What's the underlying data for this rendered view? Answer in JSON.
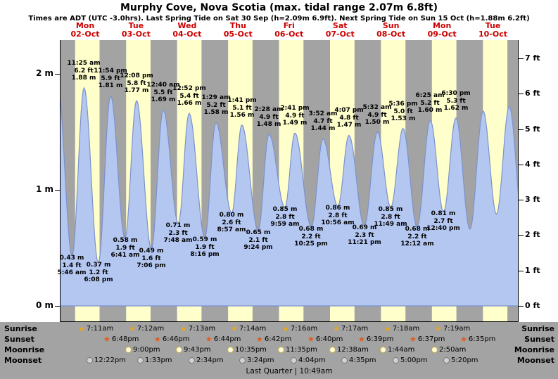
{
  "header": {
    "title": "Murphy Cove, Nova Scotia (max. tidal range 2.07m 6.8ft)",
    "subtitle": "Times are ADT (UTC -3.0hrs). Last Spring Tide on Sat 30 Sep (h=2.09m 6.9ft). Next Spring Tide on Sun 15 Oct (h=1.88m 6.2ft)"
  },
  "colors": {
    "night_band": "#a3a3a3",
    "daylight_band": "#ffffcc",
    "tide_fill": "#b4c7f1",
    "tide_stroke": "#7d92cc",
    "day_label_red": "#cc0000",
    "astro_bg": "#a3a3a3",
    "sunrise_star": "#e8a818",
    "sunset_star": "#e05c20"
  },
  "chart_data": {
    "type": "area",
    "title": "Murphy Cove, Nova Scotia (max. tidal range 2.07m 6.8ft)",
    "grid": false,
    "ylim_m": [
      -0.14,
      2.29
    ],
    "days": [
      {
        "dow": "Mon",
        "date": "02-Oct"
      },
      {
        "dow": "Tue",
        "date": "03-Oct"
      },
      {
        "dow": "Wed",
        "date": "04-Oct"
      },
      {
        "dow": "Thu",
        "date": "05-Oct"
      },
      {
        "dow": "Fri",
        "date": "06-Oct"
      },
      {
        "dow": "Sat",
        "date": "07-Oct"
      },
      {
        "dow": "Sun",
        "date": "08-Oct"
      },
      {
        "dow": "Mon",
        "date": "09-Oct"
      },
      {
        "dow": "Tue",
        "date": "10-Oct"
      }
    ],
    "y_left_ticks": [
      {
        "v": 2,
        "label": "2 m"
      },
      {
        "v": 1,
        "label": "1 m"
      },
      {
        "v": 0,
        "label": "0 m"
      }
    ],
    "y_right_ticks": [
      {
        "v": 7,
        "label": "7 ft"
      },
      {
        "v": 6,
        "label": "6 ft"
      },
      {
        "v": 5,
        "label": "5 ft"
      },
      {
        "v": 4,
        "label": "4 ft"
      },
      {
        "v": 3,
        "label": "3 ft"
      },
      {
        "v": 2,
        "label": "2 ft"
      },
      {
        "v": 1,
        "label": "1 ft"
      },
      {
        "v": 0,
        "label": "0 ft"
      }
    ],
    "daylight": {
      "start_frac": 0.3,
      "end_frac": 0.78
    },
    "tide_events": [
      {
        "t": -1.0,
        "m": 1.9,
        "type": "high",
        "labeled": false
      },
      {
        "t": 5.77,
        "m": 0.43,
        "type": "low",
        "labeled": true,
        "m_label": "0.43 m",
        "ft": "1.4 ft",
        "time": "5:46 am"
      },
      {
        "t": 11.42,
        "m": 1.88,
        "type": "high",
        "labeled": true,
        "time": "11:25 am",
        "ft": "6.2 ft",
        "m_label": "1.88 m"
      },
      {
        "t": 18.13,
        "m": 0.37,
        "type": "low",
        "labeled": true,
        "m_label": "0.37 m",
        "ft": "1.2 ft",
        "time": "6:08 pm"
      },
      {
        "t": 23.9,
        "m": 1.81,
        "type": "high",
        "labeled": true,
        "time": "11:54 pm",
        "ft": "5.9 ft",
        "m_label": "1.81 m"
      },
      {
        "t": 30.68,
        "m": 0.58,
        "type": "low",
        "labeled": true,
        "m_label": "0.58 m",
        "ft": "1.9 ft",
        "time": "6:41 am"
      },
      {
        "t": 36.13,
        "m": 1.77,
        "type": "high",
        "labeled": true,
        "time": "12:08 pm",
        "ft": "5.8 ft",
        "m_label": "1.77 m"
      },
      {
        "t": 43.1,
        "m": 0.49,
        "type": "low",
        "labeled": true,
        "m_label": "0.49 m",
        "ft": "1.6 ft",
        "time": "7:06 pm"
      },
      {
        "t": 48.67,
        "m": 1.69,
        "type": "high",
        "labeled": true,
        "time": "12:40 am",
        "ft": "5.5 ft",
        "m_label": "1.69 m"
      },
      {
        "t": 55.8,
        "m": 0.71,
        "type": "low",
        "labeled": true,
        "m_label": "0.71 m",
        "ft": "2.3 ft",
        "time": "7:48 am"
      },
      {
        "t": 60.87,
        "m": 1.66,
        "type": "high",
        "labeled": true,
        "time": "12:52 pm",
        "ft": "5.4 ft",
        "m_label": "1.66 m"
      },
      {
        "t": 68.27,
        "m": 0.59,
        "type": "low",
        "labeled": true,
        "m_label": "0.59 m",
        "ft": "1.9 ft",
        "time": "8:16 pm"
      },
      {
        "t": 73.48,
        "m": 1.58,
        "type": "high",
        "labeled": true,
        "time": "1:29 am",
        "ft": "5.2 ft",
        "m_label": "1.58 m"
      },
      {
        "t": 80.95,
        "m": 0.8,
        "type": "low",
        "labeled": true,
        "m_label": "0.80 m",
        "ft": "2.6 ft",
        "time": "8:57 am"
      },
      {
        "t": 85.68,
        "m": 1.56,
        "type": "high",
        "labeled": true,
        "time": "1:41 pm",
        "ft": "5.1 ft",
        "m_label": "1.56 m"
      },
      {
        "t": 93.4,
        "m": 0.65,
        "type": "low",
        "labeled": true,
        "m_label": "0.65 m",
        "ft": "2.1 ft",
        "time": "9:24 pm"
      },
      {
        "t": 98.47,
        "m": 1.48,
        "type": "high",
        "labeled": true,
        "time": "2:28 am",
        "ft": "4.9 ft",
        "m_label": "1.48 m"
      },
      {
        "t": 105.98,
        "m": 0.85,
        "type": "low",
        "labeled": true,
        "m_label": "0.85 m",
        "ft": "2.8 ft",
        "time": "9:59 am"
      },
      {
        "t": 110.68,
        "m": 1.49,
        "type": "high",
        "labeled": true,
        "time": "2:41 pm",
        "ft": "4.9 ft",
        "m_label": "1.49 m"
      },
      {
        "t": 118.42,
        "m": 0.68,
        "type": "low",
        "labeled": true,
        "m_label": "0.68 m",
        "ft": "2.2 ft",
        "time": "10:25 pm"
      },
      {
        "t": 123.87,
        "m": 1.44,
        "type": "high",
        "labeled": true,
        "time": "3:52 am",
        "ft": "4.7 ft",
        "m_label": "1.44 m"
      },
      {
        "t": 130.93,
        "m": 0.86,
        "type": "low",
        "labeled": true,
        "m_label": "0.86 m",
        "ft": "2.8 ft",
        "time": "10:56 am"
      },
      {
        "t": 136.12,
        "m": 1.47,
        "type": "high",
        "labeled": true,
        "time": "4:07 pm",
        "ft": "4.8 ft",
        "m_label": "1.47 m"
      },
      {
        "t": 143.35,
        "m": 0.69,
        "type": "low",
        "labeled": true,
        "m_label": "0.69 m",
        "ft": "2.3 ft",
        "time": "11:21 pm"
      },
      {
        "t": 149.53,
        "m": 1.5,
        "type": "high",
        "labeled": true,
        "time": "5:32 am",
        "ft": "4.9 ft",
        "m_label": "1.50 m"
      },
      {
        "t": 155.82,
        "m": 0.85,
        "type": "low",
        "labeled": true,
        "m_label": "0.85 m",
        "ft": "2.8 ft",
        "time": "11:49 am"
      },
      {
        "t": 161.6,
        "m": 1.53,
        "type": "high",
        "labeled": true,
        "time": "5:36 pm",
        "ft": "5.0 ft",
        "m_label": "1.53 m"
      },
      {
        "t": 168.2,
        "m": 0.68,
        "type": "low",
        "labeled": true,
        "m_label": "0.68 m",
        "ft": "2.2 ft",
        "time": "12:12 am"
      },
      {
        "t": 174.42,
        "m": 1.6,
        "type": "high",
        "labeled": true,
        "time": "6:25 am",
        "ft": "5.2 ft",
        "m_label": "1.60 m"
      },
      {
        "t": 180.67,
        "m": 0.81,
        "type": "low",
        "labeled": true,
        "m_label": "0.81 m",
        "ft": "2.7 ft",
        "time": "12:40 pm"
      },
      {
        "t": 186.5,
        "m": 1.62,
        "type": "high",
        "labeled": true,
        "time": "6:30 pm",
        "ft": "5.3 ft",
        "m_label": "1.62 m"
      },
      {
        "t": 193.1,
        "m": 0.66,
        "type": "low",
        "labeled": false
      },
      {
        "t": 199.3,
        "m": 1.68,
        "type": "high",
        "labeled": false
      },
      {
        "t": 205.6,
        "m": 0.79,
        "type": "low",
        "labeled": false
      },
      {
        "t": 211.6,
        "m": 1.72,
        "type": "high",
        "labeled": false
      },
      {
        "t": 218.3,
        "m": 0.64,
        "type": "low",
        "labeled": false
      }
    ]
  },
  "astro": {
    "row_labels": [
      "Sunrise",
      "Sunset",
      "Moonrise",
      "Moonset"
    ],
    "rows": [
      {
        "name": "sunrise",
        "entries": [
          {
            "slot": 0,
            "time": "7:11am"
          },
          {
            "slot": 1,
            "time": "7:12am"
          },
          {
            "slot": 2,
            "time": "7:13am"
          },
          {
            "slot": 3,
            "time": "7:14am"
          },
          {
            "slot": 4,
            "time": "7:16am"
          },
          {
            "slot": 5,
            "time": "7:17am"
          },
          {
            "slot": 6,
            "time": "7:18am"
          },
          {
            "slot": 7,
            "time": "7:19am"
          }
        ]
      },
      {
        "name": "sunset",
        "entries": [
          {
            "slot": 0,
            "time": "6:48pm"
          },
          {
            "slot": 1,
            "time": "6:46pm"
          },
          {
            "slot": 2,
            "time": "6:44pm"
          },
          {
            "slot": 3,
            "time": "6:42pm"
          },
          {
            "slot": 4,
            "time": "6:40pm"
          },
          {
            "slot": 5,
            "time": "6:39pm"
          },
          {
            "slot": 6,
            "time": "6:37pm"
          },
          {
            "slot": 7,
            "time": "6:35pm"
          }
        ]
      },
      {
        "name": "moonrise",
        "entries": [
          {
            "slot": 0,
            "time": "9:00pm"
          },
          {
            "slot": 1,
            "time": "9:43pm"
          },
          {
            "slot": 2,
            "time": "10:35pm"
          },
          {
            "slot": 3,
            "time": "11:35pm"
          },
          {
            "slot": 4,
            "time": "12:38am"
          },
          {
            "slot": 5,
            "time": "1:44am"
          },
          {
            "slot": 6,
            "time": "2:50am"
          }
        ]
      },
      {
        "name": "moonset",
        "entries": [
          {
            "slot": 0,
            "time": "12:22pm"
          },
          {
            "slot": 1,
            "time": "1:33pm"
          },
          {
            "slot": 2,
            "time": "2:34pm"
          },
          {
            "slot": 3,
            "time": "3:24pm"
          },
          {
            "slot": 4,
            "time": "4:04pm"
          },
          {
            "slot": 5,
            "time": "4:35pm"
          },
          {
            "slot": 6,
            "time": "5:00pm"
          },
          {
            "slot": 7,
            "time": "5:20pm"
          }
        ]
      }
    ],
    "footer": "Last Quarter | 10:49am"
  }
}
